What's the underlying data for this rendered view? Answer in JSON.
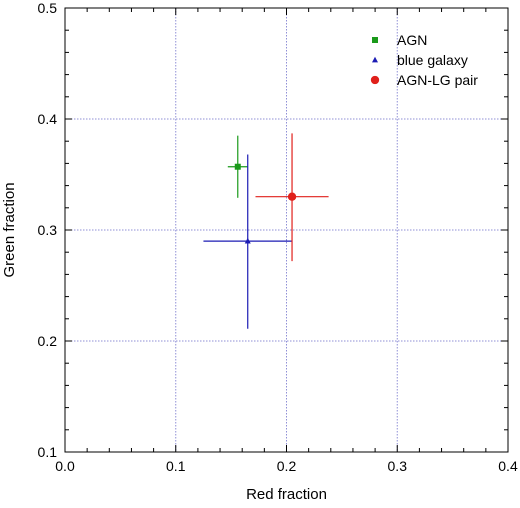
{
  "chart_data": {
    "type": "scatter",
    "xlabel": "Red fraction",
    "ylabel": "Green fraction",
    "xlim": [
      0.0,
      0.4
    ],
    "ylim": [
      0.1,
      0.5
    ],
    "x_ticks": [
      "0.0",
      "0.1",
      "0.2",
      "0.3",
      "0.4"
    ],
    "y_ticks": [
      "0.1",
      "0.2",
      "0.3",
      "0.4",
      "0.5"
    ],
    "grid": true,
    "legend_position": "top-right",
    "series": [
      {
        "name": "AGN",
        "marker": "square",
        "color": "#1a9a1a",
        "x": 0.156,
        "y": 0.357,
        "x_err": [
          0.147,
          0.165
        ],
        "y_err": [
          0.329,
          0.385
        ]
      },
      {
        "name": "blue galaxy",
        "marker": "triangle",
        "color": "#1c1cb4",
        "x": 0.165,
        "y": 0.29,
        "x_err": [
          0.125,
          0.205
        ],
        "y_err": [
          0.211,
          0.368
        ]
      },
      {
        "name": "AGN-LG pair",
        "marker": "circle",
        "color": "#e0201b",
        "x": 0.205,
        "y": 0.33,
        "x_err": [
          0.172,
          0.238
        ],
        "y_err": [
          0.272,
          0.387
        ]
      }
    ]
  }
}
